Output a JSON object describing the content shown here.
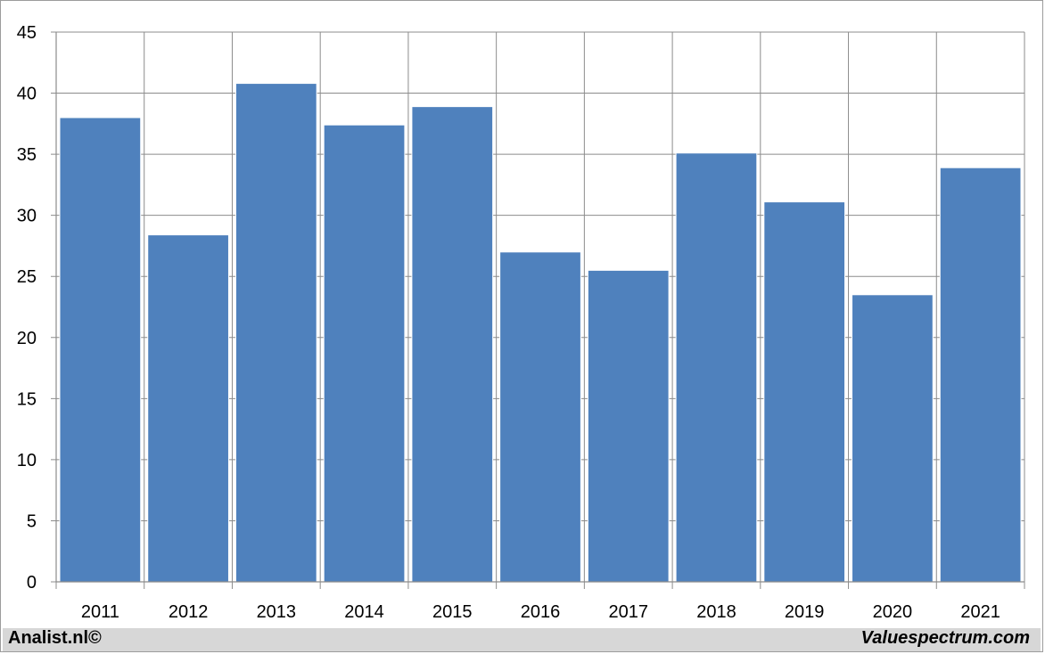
{
  "chart_data": {
    "type": "bar",
    "categories": [
      "2011",
      "2012",
      "2013",
      "2014",
      "2015",
      "2016",
      "2017",
      "2018",
      "2019",
      "2020",
      "2021"
    ],
    "values": [
      38.0,
      28.4,
      40.8,
      37.4,
      38.9,
      27.0,
      25.5,
      35.1,
      31.1,
      23.5,
      33.9
    ],
    "title": "",
    "xlabel": "",
    "ylabel": "",
    "ylim": [
      0,
      45
    ],
    "yticks": [
      "0",
      "5",
      "10",
      "15",
      "20",
      "25",
      "30",
      "35",
      "40",
      "45"
    ],
    "grid": true,
    "legend": "none",
    "bar_color": "#4f81bd",
    "grid_color": "#8c8c8c"
  },
  "footer": {
    "left_credit": "Analist.nl©",
    "right_credit": "Valuespectrum.com"
  },
  "colors": {
    "footer_background": "#d7d7d7",
    "frame_border": "#9c9c9c"
  }
}
